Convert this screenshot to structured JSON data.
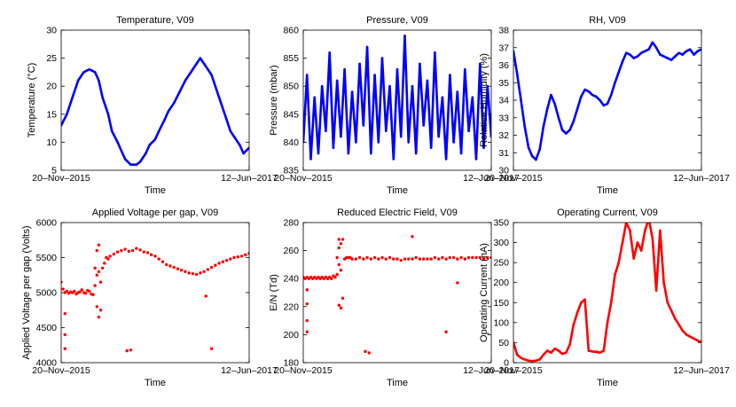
{
  "figure": {
    "colors": {
      "blue": "#0000ff",
      "red": "#ff0000"
    }
  },
  "chart_data": [
    {
      "type": "line",
      "title": "Temperature, V09",
      "xlabel": "Time",
      "ylabel": "Temperature (°C)",
      "ylim": [
        5,
        30
      ],
      "yticks": [
        "5",
        "10",
        "15",
        "20",
        "25",
        "30"
      ],
      "xtick_labels": [
        "20–Nov–2015",
        "12–Jun–2017"
      ],
      "color": "#0000ff",
      "marker": "line",
      "series": [
        {
          "name": "Temperature",
          "x": [
            0,
            0.03,
            0.06,
            0.09,
            0.12,
            0.15,
            0.18,
            0.2,
            0.22,
            0.25,
            0.27,
            0.3,
            0.32,
            0.34,
            0.37,
            0.4,
            0.42,
            0.45,
            0.47,
            0.5,
            0.52,
            0.55,
            0.57,
            0.6,
            0.63,
            0.66,
            0.69,
            0.72,
            0.74,
            0.76,
            0.78,
            0.8,
            0.82,
            0.85,
            0.88,
            0.9,
            0.92,
            0.95,
            0.97,
            1.0
          ],
          "y": [
            13,
            15,
            18,
            21,
            22.5,
            23,
            22.5,
            21,
            18,
            15,
            12,
            10,
            8.5,
            7,
            6,
            6,
            6.5,
            8,
            9.5,
            10.5,
            12,
            14,
            15.5,
            17,
            19,
            21,
            22.5,
            24,
            25,
            24,
            23,
            22,
            20,
            17,
            14,
            12,
            11,
            9.5,
            8,
            9
          ]
        }
      ]
    },
    {
      "type": "line",
      "title": "Pressure, V09",
      "xlabel": "Time",
      "ylabel": "Pressure (mbar)",
      "ylim": [
        835,
        860
      ],
      "yticks": [
        "835",
        "840",
        "845",
        "850",
        "855",
        "860"
      ],
      "xtick_labels": [
        "20–Nov–2015",
        "12–Jun–2017"
      ],
      "color": "#0000ff",
      "marker": "line",
      "series": [
        {
          "name": "Pressure",
          "x": [
            0,
            0.02,
            0.04,
            0.06,
            0.08,
            0.1,
            0.12,
            0.14,
            0.16,
            0.18,
            0.2,
            0.22,
            0.24,
            0.26,
            0.28,
            0.3,
            0.32,
            0.34,
            0.36,
            0.38,
            0.4,
            0.42,
            0.44,
            0.46,
            0.48,
            0.5,
            0.52,
            0.54,
            0.56,
            0.58,
            0.6,
            0.62,
            0.64,
            0.66,
            0.68,
            0.7,
            0.72,
            0.74,
            0.76,
            0.78,
            0.8,
            0.82,
            0.84,
            0.86,
            0.88,
            0.9,
            0.92,
            0.94,
            0.96,
            0.98,
            1.0
          ],
          "y": [
            840,
            852,
            837,
            848,
            838,
            850,
            842,
            856,
            839,
            851,
            841,
            853,
            838,
            849,
            840,
            854,
            843,
            857,
            838,
            852,
            840,
            855,
            842,
            850,
            837,
            853,
            841,
            859,
            840,
            850,
            838,
            854,
            843,
            851,
            839,
            856,
            841,
            848,
            837,
            852,
            840,
            849,
            838,
            853,
            842,
            848,
            837,
            854,
            839,
            850,
            841
          ]
        }
      ]
    },
    {
      "type": "line",
      "title": "RH, V09",
      "xlabel": "Time",
      "ylabel": "Relative Humidity (%)",
      "ylim": [
        30,
        38
      ],
      "yticks": [
        "30",
        "31",
        "32",
        "33",
        "34",
        "35",
        "36",
        "37",
        "38"
      ],
      "xtick_labels": [
        "20–Nov–2015",
        "12–Jun–2017"
      ],
      "color": "#0000ff",
      "marker": "line",
      "series": [
        {
          "name": "RH",
          "x": [
            0,
            0.02,
            0.04,
            0.06,
            0.08,
            0.1,
            0.12,
            0.14,
            0.16,
            0.18,
            0.2,
            0.22,
            0.24,
            0.26,
            0.28,
            0.3,
            0.32,
            0.34,
            0.36,
            0.38,
            0.4,
            0.42,
            0.44,
            0.46,
            0.48,
            0.5,
            0.52,
            0.54,
            0.56,
            0.58,
            0.6,
            0.62,
            0.64,
            0.66,
            0.68,
            0.7,
            0.72,
            0.74,
            0.76,
            0.78,
            0.8,
            0.82,
            0.84,
            0.86,
            0.88,
            0.9,
            0.92,
            0.94,
            0.96,
            0.98,
            1.0
          ],
          "y": [
            36.8,
            35.5,
            34,
            32.5,
            31.3,
            30.8,
            30.6,
            31.2,
            32.5,
            33.5,
            34.3,
            33.8,
            33,
            32.3,
            32.1,
            32.3,
            32.8,
            33.5,
            34.2,
            34.6,
            34.5,
            34.3,
            34.2,
            34,
            33.7,
            33.8,
            34.3,
            35,
            35.6,
            36.2,
            36.7,
            36.6,
            36.4,
            36.5,
            36.7,
            36.8,
            36.9,
            37.3,
            37,
            36.6,
            36.5,
            36.4,
            36.3,
            36.5,
            36.7,
            36.6,
            36.8,
            36.9,
            36.6,
            36.8,
            36.9
          ]
        }
      ]
    },
    {
      "type": "scatter",
      "title": "Applied Voltage per gap, V09",
      "xlabel": "Time",
      "ylabel": "Applied Voltage per gap (Volts)",
      "ylim": [
        4000,
        6000
      ],
      "yticks": [
        "4000",
        "4500",
        "5000",
        "5500",
        "6000"
      ],
      "xtick_labels": [
        "20–Nov–2015",
        "12–Jun–2017"
      ],
      "color": "#ff0000",
      "marker": "dots",
      "series": [
        {
          "name": "Applied Voltage",
          "x": [
            0,
            0.01,
            0.02,
            0.03,
            0.04,
            0.05,
            0.06,
            0.07,
            0.08,
            0.09,
            0.1,
            0.11,
            0.12,
            0.13,
            0.14,
            0.15,
            0.16,
            0.17,
            0.18,
            0.19,
            0.2,
            0.21,
            0.22,
            0.23,
            0.24,
            0.25,
            0.26,
            0.28,
            0.3,
            0.32,
            0.34,
            0.36,
            0.38,
            0.4,
            0.42,
            0.44,
            0.46,
            0.48,
            0.5,
            0.52,
            0.54,
            0.56,
            0.58,
            0.6,
            0.62,
            0.64,
            0.66,
            0.68,
            0.7,
            0.72,
            0.74,
            0.76,
            0.78,
            0.8,
            0.82,
            0.84,
            0.86,
            0.88,
            0.9,
            0.92,
            0.94,
            0.96,
            0.98,
            1.0,
            0.02,
            0.02,
            0.02,
            0.19,
            0.2,
            0.21,
            0.2,
            0.19,
            0.35,
            0.37,
            0.77,
            0.8,
            0.18
          ],
          "y": [
            5150,
            5050,
            5000,
            5020,
            4990,
            5010,
            5000,
            5020,
            4980,
            5000,
            5010,
            5040,
            5000,
            4990,
            5030,
            5020,
            4980,
            4970,
            5100,
            5250,
            5300,
            5150,
            5350,
            5420,
            5500,
            5480,
            5520,
            5550,
            5580,
            5600,
            5620,
            5590,
            5600,
            5630,
            5610,
            5580,
            5570,
            5540,
            5520,
            5480,
            5440,
            5400,
            5380,
            5360,
            5340,
            5320,
            5300,
            5280,
            5270,
            5260,
            5280,
            5300,
            5330,
            5360,
            5390,
            5420,
            5440,
            5460,
            5480,
            5500,
            5510,
            5520,
            5540,
            5560,
            4700,
            4400,
            4200,
            4800,
            4650,
            4750,
            5680,
            5600,
            4170,
            4180,
            4950,
            4200,
            5350
          ]
        }
      ]
    },
    {
      "type": "scatter",
      "title": "Reduced Electric Field, V09",
      "xlabel": "Time",
      "ylabel": "E/N (Td)",
      "ylim": [
        180,
        280
      ],
      "yticks": [
        "180",
        "200",
        "220",
        "240",
        "260",
        "280"
      ],
      "xtick_labels": [
        "20–Nov–2015",
        "12–Jun–2017"
      ],
      "color": "#ff0000",
      "marker": "dots",
      "series": [
        {
          "name": "E/N",
          "x": [
            0,
            0.01,
            0.02,
            0.03,
            0.04,
            0.05,
            0.06,
            0.07,
            0.08,
            0.09,
            0.1,
            0.11,
            0.12,
            0.13,
            0.14,
            0.15,
            0.16,
            0.17,
            0.18,
            0.19,
            0.2,
            0.21,
            0.22,
            0.23,
            0.24,
            0.25,
            0.26,
            0.28,
            0.3,
            0.32,
            0.34,
            0.36,
            0.38,
            0.4,
            0.42,
            0.44,
            0.46,
            0.48,
            0.5,
            0.52,
            0.54,
            0.56,
            0.58,
            0.6,
            0.62,
            0.64,
            0.66,
            0.68,
            0.7,
            0.72,
            0.74,
            0.76,
            0.78,
            0.8,
            0.82,
            0.84,
            0.86,
            0.88,
            0.9,
            0.92,
            0.94,
            0.96,
            0.98,
            1.0,
            0.02,
            0.02,
            0.02,
            0.02,
            0.18,
            0.19,
            0.2,
            0.21,
            0.19,
            0.2,
            0.19,
            0.33,
            0.35,
            0.58,
            0.76,
            0.82
          ],
          "y": [
            241,
            240,
            241,
            240,
            241,
            240,
            241,
            240,
            241,
            240,
            241,
            240,
            241,
            240,
            241,
            240,
            242,
            241,
            255,
            250,
            246,
            226,
            254,
            255,
            255,
            255,
            254,
            254,
            255,
            254,
            255,
            254,
            255,
            254,
            255,
            254,
            255,
            254,
            254,
            253,
            254,
            254,
            254,
            255,
            254,
            254,
            254,
            254,
            255,
            254,
            255,
            254,
            255,
            255,
            254,
            255,
            254,
            255,
            255,
            255,
            255,
            254,
            255,
            255,
            232,
            222,
            210,
            202,
            243,
            268,
            265,
            268,
            221,
            219,
            262,
            188,
            187,
            270,
            202,
            237
          ]
        }
      ]
    },
    {
      "type": "line",
      "title": "Operating Current, V09",
      "xlabel": "Time",
      "ylabel": "Operating Current (nA)",
      "ylim": [
        0,
        350
      ],
      "yticks": [
        "0",
        "50",
        "100",
        "150",
        "200",
        "250",
        "300",
        "350"
      ],
      "xtick_labels": [
        "20–Nov–2015",
        "12–Jun–2017"
      ],
      "color": "#ff0000",
      "marker": "line",
      "series": [
        {
          "name": "Current",
          "x": [
            0,
            0.02,
            0.04,
            0.06,
            0.08,
            0.1,
            0.12,
            0.14,
            0.16,
            0.18,
            0.2,
            0.22,
            0.24,
            0.26,
            0.28,
            0.3,
            0.32,
            0.34,
            0.36,
            0.38,
            0.4,
            0.42,
            0.44,
            0.46,
            0.48,
            0.5,
            0.52,
            0.54,
            0.56,
            0.58,
            0.6,
            0.62,
            0.64,
            0.66,
            0.68,
            0.7,
            0.72,
            0.74,
            0.76,
            0.78,
            0.8,
            0.82,
            0.84,
            0.86,
            0.88,
            0.9,
            0.92,
            0.94,
            0.96,
            0.98,
            1.0
          ],
          "y": [
            50,
            20,
            12,
            8,
            5,
            4,
            5,
            8,
            20,
            30,
            25,
            35,
            30,
            22,
            25,
            45,
            95,
            125,
            150,
            158,
            30,
            28,
            27,
            25,
            30,
            100,
            150,
            220,
            250,
            300,
            350,
            330,
            260,
            300,
            280,
            330,
            360,
            310,
            180,
            330,
            200,
            150,
            130,
            110,
            95,
            80,
            70,
            65,
            60,
            55,
            52
          ]
        }
      ]
    }
  ]
}
